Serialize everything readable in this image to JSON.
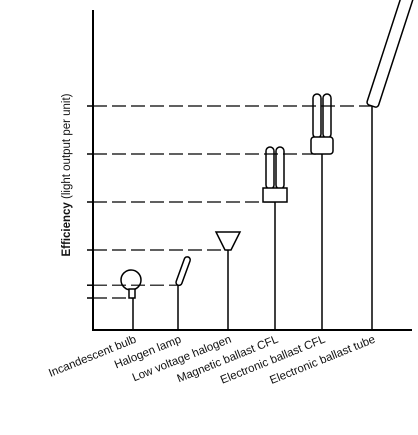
{
  "chart_data": {
    "type": "bar",
    "ylabel": [
      "Efficiency",
      "(light output per unit)"
    ],
    "categories": [
      "Incandescent bulb",
      "Halogen lamp",
      "Low voltage halogen",
      "Magnetic ballast CFL",
      "Electronic ballast CFL",
      "Electronic ballast tube"
    ],
    "values": [
      10,
      14,
      25,
      40,
      55,
      70
    ],
    "ylim": [
      0,
      100
    ],
    "color": "#000000"
  }
}
